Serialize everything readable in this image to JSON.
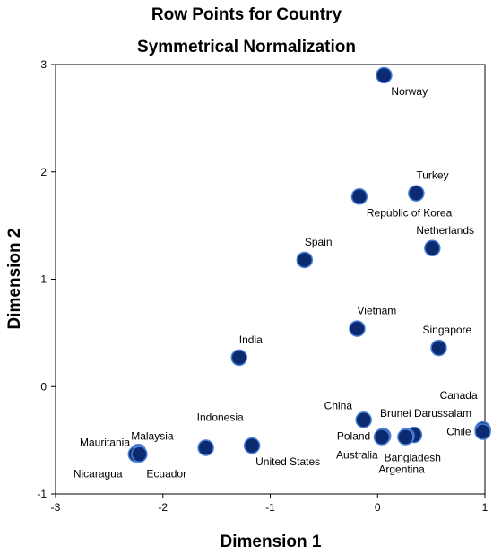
{
  "chart_data": {
    "type": "scatter",
    "title": "Row Points for Country",
    "subtitle": "Symmetrical Normalization",
    "xlabel": "Dimension 1",
    "ylabel": "Dimension 2",
    "xlim": [
      -3,
      1
    ],
    "ylim": [
      -1,
      3
    ],
    "xticks": [
      "-3",
      "-2",
      "-1",
      "0",
      "1"
    ],
    "yticks": [
      "-1",
      "0",
      "1",
      "2",
      "3"
    ],
    "grid": false,
    "marker_color": "#0b2a6f",
    "marker_edge": "#4a7fd6",
    "points": [
      {
        "label": "Norway",
        "x": 0.06,
        "y": 2.9,
        "lpos": "below-right"
      },
      {
        "label": "Turkey",
        "x": 0.36,
        "y": 1.8,
        "lpos": "above-right"
      },
      {
        "label": "Republic of Korea",
        "x": -0.17,
        "y": 1.77,
        "lpos": "below-right"
      },
      {
        "label": "Netherlands",
        "x": 0.51,
        "y": 1.29,
        "lpos": "above"
      },
      {
        "label": "Spain",
        "x": -0.68,
        "y": 1.18,
        "lpos": "above-right"
      },
      {
        "label": "Vietnam",
        "x": -0.19,
        "y": 0.54,
        "lpos": "above-right"
      },
      {
        "label": "Singapore",
        "x": 0.57,
        "y": 0.36,
        "lpos": "above"
      },
      {
        "label": "India",
        "x": -1.29,
        "y": 0.27,
        "lpos": "above-right"
      },
      {
        "label": "China",
        "x": -0.13,
        "y": -0.31,
        "lpos": "above-left"
      },
      {
        "label": "Canada",
        "x": 0.98,
        "y": -0.4,
        "lpos": "above-left2"
      },
      {
        "label": "Brunei Darussalam",
        "x": 0.34,
        "y": -0.45,
        "lpos": "above-mid"
      },
      {
        "label": "Chile",
        "x": 0.98,
        "y": -0.42,
        "lpos": "left"
      },
      {
        "label": "Poland",
        "x": 0.05,
        "y": -0.46,
        "lpos": "left"
      },
      {
        "label": "Australia",
        "x": 0.04,
        "y": -0.47,
        "lpos": "below-left"
      },
      {
        "label": "Bangladesh",
        "x": 0.27,
        "y": -0.46,
        "lpos": "below-right"
      },
      {
        "label": "Argentina",
        "x": 0.26,
        "y": -0.47,
        "lpos": "below-far"
      },
      {
        "label": "Indonesia",
        "x": -1.6,
        "y": -0.57,
        "lpos": "above-right"
      },
      {
        "label": "United States",
        "x": -1.17,
        "y": -0.55,
        "lpos": "below-right"
      },
      {
        "label": "Malaysia",
        "x": -2.23,
        "y": -0.61,
        "lpos": "above-right"
      },
      {
        "label": "Mauritania",
        "x": -2.24,
        "y": -0.62,
        "lpos": "left"
      },
      {
        "label": "Nicaragua",
        "x": -2.25,
        "y": -0.63,
        "lpos": "below-left"
      },
      {
        "label": "Ecuador",
        "x": -2.22,
        "y": -0.63,
        "lpos": "below-right"
      }
    ]
  }
}
